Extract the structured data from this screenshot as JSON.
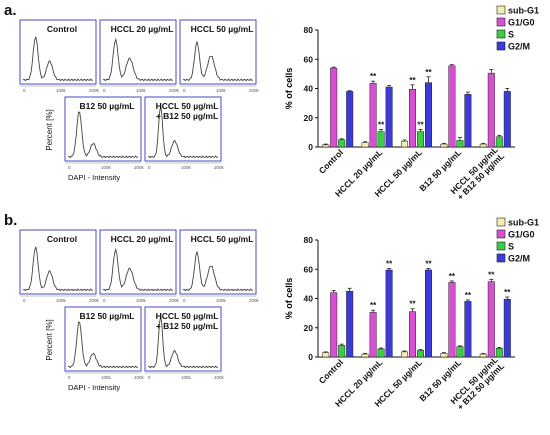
{
  "legend": [
    {
      "label": "sub-G1",
      "color": "#f5ecb0"
    },
    {
      "label": "G1/G0",
      "color": "#d94fd4"
    },
    {
      "label": "S",
      "color": "#3dcc48"
    },
    {
      "label": "G2/M",
      "color": "#3b3bd8"
    }
  ],
  "histograms": {
    "labels": [
      "Control",
      "HCCL 20 µg/mL",
      "HCCL 50 µg/mL",
      "B12 50 µg/mL",
      "HCCL 50 µg/mL\n+ B12 50 µg/mL"
    ],
    "y_axis_label": "Percent [%]",
    "x_axis_label": "DAPI - Intensity",
    "x_ticks": [
      "0",
      "100k",
      "200k"
    ]
  },
  "panels": [
    {
      "label": "a."
    },
    {
      "label": "b."
    }
  ],
  "chart_data": [
    {
      "type": "bar",
      "panel": "a.",
      "ylabel": "% of cells",
      "ylim": [
        0,
        80
      ],
      "yticks": [
        0,
        20,
        40,
        60,
        80
      ],
      "categories": [
        "Control",
        "HCCL 20 µg/mL",
        "HCCL 50 µg/mL",
        "B12 50 µg/mL",
        "HCCL 50 µg/mL\n+ B12 50 µg/mL"
      ],
      "series": [
        {
          "name": "sub-G1",
          "values": [
            1.5,
            3,
            4,
            2,
            2
          ],
          "errors": [
            0.5,
            0.6,
            0.8,
            0.5,
            0.5
          ],
          "sig": [
            "",
            "",
            "",
            "",
            ""
          ]
        },
        {
          "name": "G1/G0",
          "values": [
            54,
            43.5,
            39.5,
            55.5,
            50.5
          ],
          "errors": [
            0.6,
            1.5,
            3,
            0.8,
            2.5
          ],
          "sig": [
            "",
            "**",
            "**",
            "",
            ""
          ]
        },
        {
          "name": "S",
          "values": [
            5,
            10.5,
            10.5,
            4.5,
            7
          ],
          "errors": [
            0.6,
            1.5,
            1.5,
            2,
            1.0
          ],
          "sig": [
            "",
            "**",
            "**",
            "",
            ""
          ]
        },
        {
          "name": "G2/M",
          "values": [
            38,
            41,
            44,
            36,
            38
          ],
          "errors": [
            0.5,
            1.0,
            4,
            1.5,
            2
          ],
          "sig": [
            "",
            "",
            "**",
            "",
            ""
          ]
        }
      ]
    },
    {
      "type": "bar",
      "panel": "b.",
      "ylabel": "% of cells",
      "ylim": [
        0,
        80
      ],
      "yticks": [
        0,
        20,
        40,
        60,
        80
      ],
      "categories": [
        "Control",
        "HCCL 20 µg/mL",
        "HCCL 50 µg/mL",
        "B12 50 µg/mL",
        "HCCL 50 µg/mL\n+ B12 50 µg/mL"
      ],
      "series": [
        {
          "name": "sub-G1",
          "values": [
            3,
            2,
            3.5,
            2.5,
            2
          ],
          "errors": [
            0.5,
            0.5,
            0.6,
            0.5,
            0.5
          ],
          "sig": [
            "",
            "",
            "",
            "",
            ""
          ]
        },
        {
          "name": "G1/G0",
          "values": [
            44,
            30.5,
            31,
            51,
            51.5
          ],
          "errors": [
            1.5,
            1.5,
            2,
            1.0,
            1.5
          ],
          "sig": [
            "",
            "**",
            "**",
            "**",
            "**"
          ]
        },
        {
          "name": "S",
          "values": [
            8,
            5.5,
            4.5,
            7,
            6
          ],
          "errors": [
            0.8,
            0.6,
            0.6,
            0.6,
            0.6
          ],
          "sig": [
            "",
            "",
            "",
            "",
            ""
          ]
        },
        {
          "name": "G2/M",
          "values": [
            45,
            59.5,
            59.5,
            38,
            39.5
          ],
          "errors": [
            2,
            1.0,
            1.0,
            1.0,
            1.5
          ],
          "sig": [
            "",
            "**",
            "**",
            "**",
            "**"
          ]
        }
      ]
    }
  ]
}
